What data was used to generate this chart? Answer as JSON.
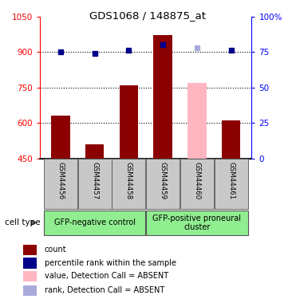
{
  "title": "GDS1068 / 148875_at",
  "samples": [
    "GSM44456",
    "GSM44457",
    "GSM44458",
    "GSM44459",
    "GSM44460",
    "GSM44461"
  ],
  "bar_values": [
    630,
    510,
    760,
    970,
    null,
    610
  ],
  "bar_absent_values": [
    null,
    null,
    null,
    null,
    770,
    null
  ],
  "rank_values": [
    75,
    74,
    76,
    80,
    null,
    76
  ],
  "rank_absent_values": [
    null,
    null,
    null,
    null,
    78,
    null
  ],
  "bar_color": "#8B0000",
  "bar_absent_color": "#FFB6C1",
  "rank_color": "#00008B",
  "rank_absent_color": "#AAAADD",
  "ylim_left": [
    450,
    1050
  ],
  "ylim_right": [
    0,
    100
  ],
  "yticks_left": [
    450,
    600,
    750,
    900,
    1050
  ],
  "yticks_right": [
    0,
    25,
    50,
    75,
    100
  ],
  "ytick_labels_right": [
    "0",
    "25",
    "50",
    "75",
    "100%"
  ],
  "group1_label": "GFP-negative control",
  "group2_label": "GFP-positive proneural\ncluster",
  "cell_type_label": "cell type",
  "group_color": "#90EE90",
  "legend_items": [
    {
      "label": "count",
      "color": "#8B0000"
    },
    {
      "label": "percentile rank within the sample",
      "color": "#00008B"
    },
    {
      "label": "value, Detection Call = ABSENT",
      "color": "#FFB6C1"
    },
    {
      "label": "rank, Detection Call = ABSENT",
      "color": "#AAAADD"
    }
  ],
  "bar_width": 0.55,
  "grid_linestyle": ":"
}
